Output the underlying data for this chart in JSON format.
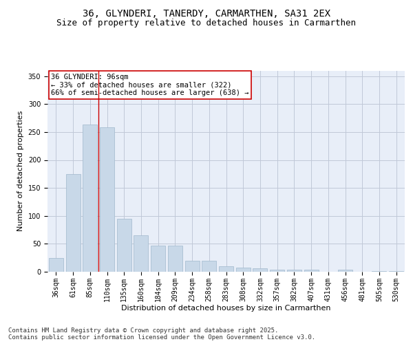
{
  "title": "36, GLYNDERI, TANERDY, CARMARTHEN, SA31 2EX",
  "subtitle": "Size of property relative to detached houses in Carmarthen",
  "xlabel": "Distribution of detached houses by size in Carmarthen",
  "ylabel": "Number of detached properties",
  "categories": [
    "36sqm",
    "61sqm",
    "85sqm",
    "110sqm",
    "135sqm",
    "160sqm",
    "184sqm",
    "209sqm",
    "234sqm",
    "258sqm",
    "283sqm",
    "308sqm",
    "332sqm",
    "357sqm",
    "382sqm",
    "407sqm",
    "431sqm",
    "456sqm",
    "481sqm",
    "505sqm",
    "530sqm"
  ],
  "values": [
    25,
    175,
    263,
    258,
    95,
    65,
    47,
    47,
    20,
    20,
    10,
    8,
    6,
    4,
    4,
    4,
    0,
    4,
    0,
    1,
    1
  ],
  "bar_color": "#c8d8e8",
  "bar_edge_color": "#a0b8cc",
  "grid_color": "#c0c8d8",
  "background_color": "#e8eef8",
  "vline_x": 2.5,
  "vline_color": "#cc0000",
  "annotation_text": "36 GLYNDERI: 96sqm\n← 33% of detached houses are smaller (322)\n66% of semi-detached houses are larger (638) →",
  "annotation_box_color": "#ffffff",
  "annotation_box_edge": "#cc0000",
  "ylim": [
    0,
    360
  ],
  "yticks": [
    0,
    50,
    100,
    150,
    200,
    250,
    300,
    350
  ],
  "footer": "Contains HM Land Registry data © Crown copyright and database right 2025.\nContains public sector information licensed under the Open Government Licence v3.0.",
  "title_fontsize": 10,
  "subtitle_fontsize": 9,
  "axis_label_fontsize": 8,
  "tick_fontsize": 7,
  "annotation_fontsize": 7.5,
  "footer_fontsize": 6.5
}
